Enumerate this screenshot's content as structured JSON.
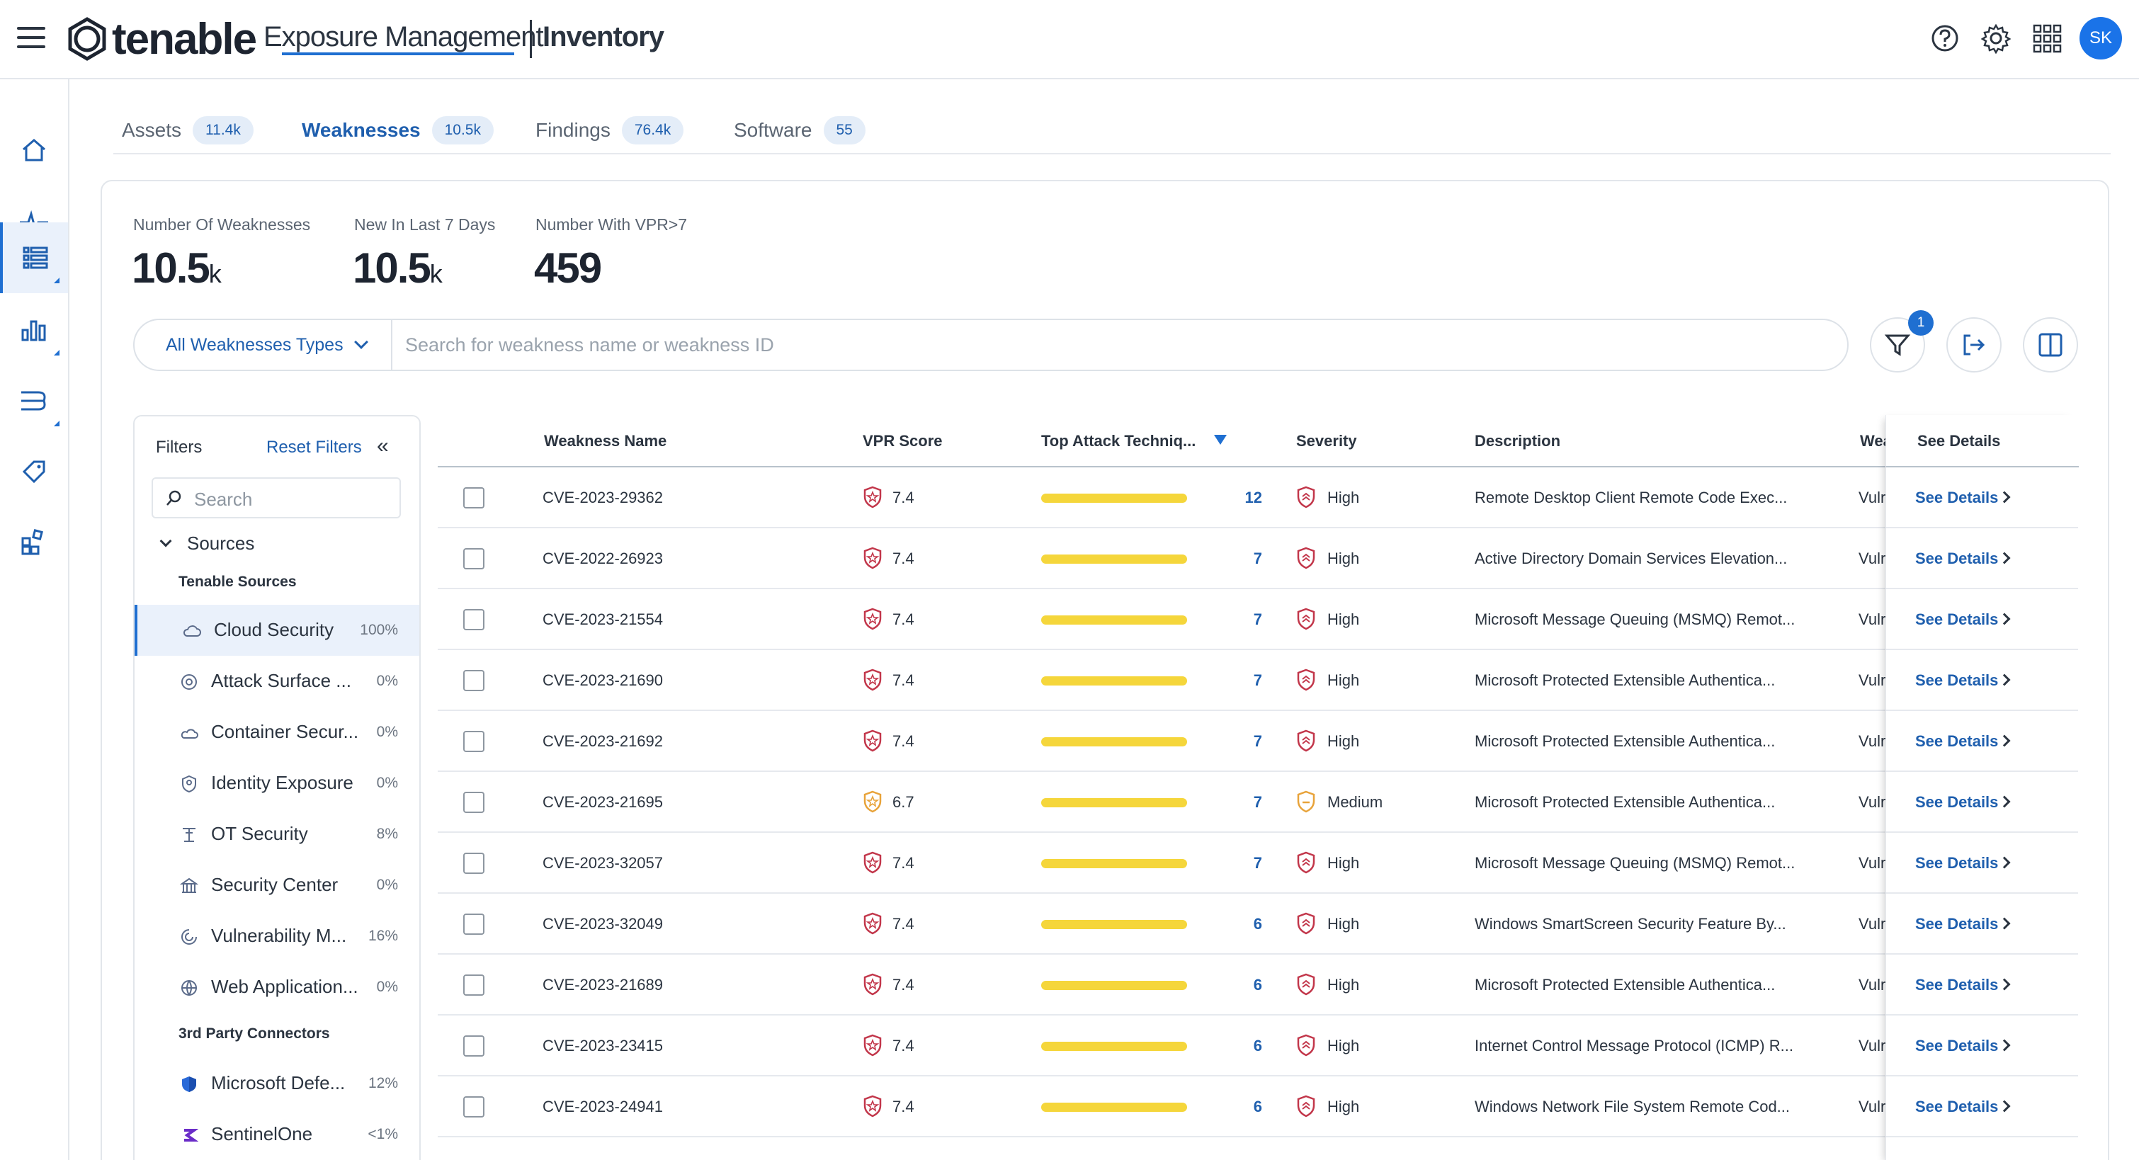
{
  "header": {
    "brand": "tenable",
    "product": "Exposure Management",
    "section": "Inventory",
    "icons": [
      "menu-icon",
      "help-icon",
      "gear-icon",
      "apps-grid-icon"
    ],
    "avatar_initials": "SK"
  },
  "rail": {
    "items": [
      "home-icon",
      "pulse-icon",
      "inventory-icon",
      "charts-icon",
      "attack-path-icon",
      "tag-icon",
      "apps-icon"
    ],
    "active": "inventory-icon"
  },
  "tabs": [
    {
      "label": "Assets",
      "count": "11.4k"
    },
    {
      "label": "Weaknesses",
      "count": "10.5k"
    },
    {
      "label": "Findings",
      "count": "76.4k"
    },
    {
      "label": "Software",
      "count": "55"
    }
  ],
  "stats": [
    {
      "label": "Number Of Weaknesses",
      "value": "10.5",
      "suffix": "k"
    },
    {
      "label": "New In Last 7 Days",
      "value": "10.5",
      "suffix": "k"
    },
    {
      "label": "Number With VPR>7",
      "value": "459",
      "suffix": ""
    }
  ],
  "search": {
    "type_select": "All Weaknesses Types",
    "placeholder": "Search for weakness name or weakness ID",
    "filter_count": "1"
  },
  "filters": {
    "title": "Filters",
    "reset": "Reset Filters",
    "collapse": "«",
    "search_placeholder": "Search",
    "sources_label": "Sources",
    "groups": [
      {
        "title": "Tenable Sources",
        "items": [
          {
            "name": "Cloud Security",
            "percent": "100%",
            "icon": "cloud-security-icon",
            "active": true
          },
          {
            "name": "Attack Surface ...",
            "percent": "0%",
            "icon": "attack-surface-icon"
          },
          {
            "name": "Container Secur...",
            "percent": "0%",
            "icon": "container-icon"
          },
          {
            "name": "Identity Exposure",
            "percent": "0%",
            "icon": "identity-icon"
          },
          {
            "name": "OT Security",
            "percent": "8%",
            "icon": "ot-security-icon"
          },
          {
            "name": "Security Center",
            "percent": "0%",
            "icon": "security-center-icon"
          },
          {
            "name": "Vulnerability M...",
            "percent": "16%",
            "icon": "vulnerability-icon"
          },
          {
            "name": "Web Application...",
            "percent": "0%",
            "icon": "web-app-icon"
          }
        ]
      },
      {
        "title": "3rd Party Connectors",
        "items": [
          {
            "name": "Microsoft Defe...",
            "percent": "12%",
            "icon": "microsoft-defender-icon"
          },
          {
            "name": "SentinelOne",
            "percent": "<1%",
            "icon": "sentinelone-icon"
          }
        ]
      }
    ]
  },
  "table": {
    "columns": [
      "Weakness Name",
      "VPR Score",
      "Top Attack Techniq...",
      "Severity",
      "Description",
      "Wea",
      "See Details"
    ],
    "rows": [
      {
        "name": "CVE-2023-29362",
        "vpr": "7.4",
        "attacks": "12",
        "severity": "High",
        "description": "Remote Desktop Client Remote Code Exec...",
        "type": "Vulr"
      },
      {
        "name": "CVE-2022-26923",
        "vpr": "7.4",
        "attacks": "7",
        "severity": "High",
        "description": "Active Directory Domain Services Elevation...",
        "type": "Vulr"
      },
      {
        "name": "CVE-2023-21554",
        "vpr": "7.4",
        "attacks": "7",
        "severity": "High",
        "description": "Microsoft Message Queuing (MSMQ) Remot...",
        "type": "Vulr"
      },
      {
        "name": "CVE-2023-21690",
        "vpr": "7.4",
        "attacks": "7",
        "severity": "High",
        "description": "Microsoft Protected Extensible Authentica...",
        "type": "Vulr"
      },
      {
        "name": "CVE-2023-21692",
        "vpr": "7.4",
        "attacks": "7",
        "severity": "High",
        "description": "Microsoft Protected Extensible Authentica...",
        "type": "Vulr"
      },
      {
        "name": "CVE-2023-21695",
        "vpr": "6.7",
        "attacks": "7",
        "severity": "Medium",
        "description": "Microsoft Protected Extensible Authentica...",
        "type": "Vulr"
      },
      {
        "name": "CVE-2023-32057",
        "vpr": "7.4",
        "attacks": "7",
        "severity": "High",
        "description": "Microsoft Message Queuing (MSMQ) Remot...",
        "type": "Vulr"
      },
      {
        "name": "CVE-2023-32049",
        "vpr": "7.4",
        "attacks": "6",
        "severity": "High",
        "description": "Windows SmartScreen Security Feature By...",
        "type": "Vulr"
      },
      {
        "name": "CVE-2023-21689",
        "vpr": "7.4",
        "attacks": "6",
        "severity": "High",
        "description": "Microsoft Protected Extensible Authentica...",
        "type": "Vulr"
      },
      {
        "name": "CVE-2023-23415",
        "vpr": "7.4",
        "attacks": "6",
        "severity": "High",
        "description": "Internet Control Message Protocol (ICMP) R...",
        "type": "Vulr"
      },
      {
        "name": "CVE-2023-24941",
        "vpr": "7.4",
        "attacks": "6",
        "severity": "High",
        "description": "Windows Network File System Remote Cod...",
        "type": "Vulr"
      }
    ],
    "details_label": "See Details",
    "colors": {
      "high": "#c2364a",
      "medium": "#e8a33a",
      "bar": "#f5d63b",
      "accent": "#1f6fd1"
    }
  }
}
